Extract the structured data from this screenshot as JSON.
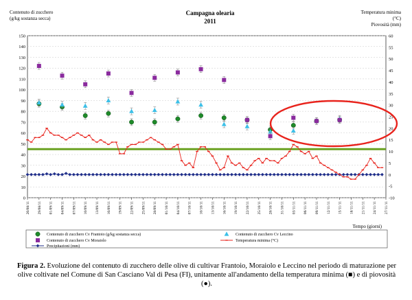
{
  "chart_data": {
    "type": "scatter",
    "title": "Campagna olearia",
    "subtitle": "2011",
    "y_left": {
      "label_line1": "Contenuto di zucchero",
      "label_line2": "(g/kg sostanza secca)",
      "min": 0,
      "max": 150,
      "step": 10
    },
    "y_right": {
      "label_line1": "Temperatura minima",
      "label_line2": "(°C)",
      "label_line3": "Piovosità (mm)",
      "min": -10,
      "max": 60,
      "step": 5
    },
    "x_label": "Tempo (giorni)",
    "x_ticks": [
      "26/08/11",
      "29/08/11",
      "01/09/11",
      "04/09/11",
      "07/09/11",
      "10/09/11",
      "13/09/11",
      "16/09/11",
      "19/09/11",
      "22/09/11",
      "25/09/11",
      "28/09/11",
      "01/10/11",
      "04/10/11",
      "07/10/11",
      "10/10/11",
      "13/10/11",
      "16/10/11",
      "19/10/11",
      "22/10/11",
      "25/10/11",
      "28/10/11",
      "31/10/11",
      "03/11/11",
      "06/11/11",
      "09/11/11",
      "12/11/11",
      "15/11/11",
      "18/11/11",
      "21/11/11",
      "24/11/11",
      "27/11/11"
    ],
    "threshold_value": 45,
    "threshold_color": "#6aa121",
    "highlight_color": "#e8231c",
    "series": [
      {
        "name": "Contenuto di zucchero Cv Frantoio (g/kg sostanza secca)",
        "marker": "circle",
        "color": "#1f8a2a",
        "axis": "left",
        "days": [
          3,
          9,
          15,
          21,
          27,
          33,
          39,
          45,
          51,
          57,
          63,
          69,
          75,
          81
        ],
        "values": [
          87,
          84,
          76,
          78,
          70,
          70,
          73,
          76,
          74,
          72,
          63,
          67,
          71,
          72
        ]
      },
      {
        "name": "Contenuto di zucchero Cv Leccino",
        "marker": "triangle",
        "color": "#3cc0e8",
        "axis": "left",
        "days": [
          3,
          9,
          15,
          21,
          27,
          33,
          39,
          45,
          51,
          57,
          63,
          69,
          75,
          81
        ],
        "values": [
          88,
          86,
          85,
          90,
          80,
          81,
          89,
          86,
          68,
          66,
          61,
          62,
          71,
          73
        ]
      },
      {
        "name": "Contenuto di zucchero Cv Moraiolo",
        "marker": "square",
        "color": "#8a2b9e",
        "axis": "left",
        "days": [
          3,
          9,
          15,
          21,
          27,
          33,
          39,
          45,
          51,
          57,
          63,
          69,
          75,
          81
        ],
        "values": [
          122,
          113,
          105,
          115,
          97,
          111,
          116,
          119,
          109,
          72,
          57,
          74,
          71,
          72
        ]
      },
      {
        "name": "Precipitazioni (mm)",
        "marker": "diamond-line",
        "color": "#1f2e8a",
        "axis": "right",
        "days": [
          0,
          1,
          2,
          3,
          4,
          5,
          6,
          7,
          8,
          9,
          10,
          11,
          12,
          13,
          14,
          15,
          16,
          17,
          18,
          19,
          20,
          21,
          22,
          23,
          24,
          25,
          26,
          27,
          28,
          29,
          30,
          31,
          32,
          33,
          34,
          35,
          36,
          37,
          38,
          39,
          40,
          41,
          42,
          43,
          44,
          45,
          46,
          47,
          48,
          49,
          50,
          51,
          52,
          53,
          54,
          55,
          56,
          57,
          58,
          59,
          60,
          61,
          62,
          63,
          64,
          65,
          66,
          67,
          68,
          69,
          70,
          71,
          72,
          73,
          74,
          75,
          76,
          77,
          78,
          79,
          80,
          81,
          82,
          83,
          84,
          85,
          86,
          87,
          88,
          89,
          90,
          91,
          92
        ],
        "values": [
          0,
          0,
          0,
          0,
          0,
          0.3,
          0,
          0.3,
          0,
          0,
          0.5,
          0,
          0,
          0,
          0,
          0,
          0,
          0,
          0,
          0,
          0,
          0,
          0,
          0,
          0,
          0,
          0,
          0,
          0,
          0,
          0,
          0,
          0,
          0,
          0,
          0,
          0,
          0,
          0,
          0,
          0,
          0,
          0,
          0,
          0,
          0,
          0,
          0,
          0,
          0,
          0,
          0,
          0,
          0,
          0,
          0,
          0,
          0,
          0,
          0,
          0,
          0,
          0,
          0,
          0,
          0,
          0,
          0,
          0,
          0,
          0,
          0,
          0,
          0,
          0,
          0,
          0,
          0,
          0,
          0,
          0,
          0,
          0,
          0,
          0,
          0,
          0,
          0,
          0,
          0,
          0,
          0,
          0
        ]
      },
      {
        "name": "Temperatura minima (°C)",
        "marker": "dash-line",
        "color": "#e8231c",
        "axis": "right",
        "days": [
          0,
          1,
          2,
          3,
          4,
          5,
          6,
          7,
          8,
          9,
          10,
          11,
          12,
          13,
          14,
          15,
          16,
          17,
          18,
          19,
          20,
          21,
          22,
          23,
          24,
          25,
          26,
          27,
          28,
          29,
          30,
          31,
          32,
          33,
          34,
          35,
          36,
          37,
          38,
          39,
          40,
          41,
          42,
          43,
          44,
          45,
          46,
          47,
          48,
          49,
          50,
          51,
          52,
          53,
          54,
          55,
          56,
          57,
          58,
          59,
          60,
          61,
          62,
          63,
          64,
          65,
          66,
          67,
          68,
          69,
          70,
          71,
          72,
          73,
          74,
          75,
          76,
          77,
          78,
          79,
          80,
          81,
          82,
          83,
          84,
          85,
          86,
          87,
          88,
          89,
          90,
          91,
          92
        ],
        "values": [
          15,
          14,
          16,
          16,
          17,
          20,
          18,
          17,
          17,
          16,
          15,
          16,
          17,
          18,
          17,
          16,
          17,
          15,
          14,
          15,
          14,
          13,
          14,
          14,
          9,
          9,
          12,
          13,
          13,
          14,
          14,
          15,
          16,
          15,
          14,
          13,
          11,
          11,
          12,
          13,
          6,
          4,
          5,
          3,
          10,
          12,
          12,
          10,
          8,
          5,
          2,
          3,
          8,
          5,
          4,
          5,
          3,
          2,
          4,
          6,
          7,
          5,
          7,
          6,
          6,
          5,
          7,
          8,
          10,
          13,
          12,
          10,
          9,
          10,
          7,
          8,
          5,
          4,
          3,
          2,
          1,
          0,
          -1,
          -1,
          -2,
          -2,
          0,
          2,
          4,
          7,
          5,
          3,
          3
        ]
      }
    ],
    "legend": [
      {
        "label": "Contenuto di zucchero Cv Frantoio (g/kg sostanza secca)",
        "marker": "circle",
        "color": "#1f8a2a"
      },
      {
        "label": "Contenuto di zucchero Cv Leccino",
        "marker": "triangle",
        "color": "#3cc0e8"
      },
      {
        "label": "Contenuto di zucchero Cv Moraiolo",
        "marker": "square",
        "color": "#8a2b9e"
      },
      {
        "label": "Temperatura minima (°C)",
        "marker": "dash-line",
        "color": "#e8231c"
      },
      {
        "label": "Precipitazioni (mm)",
        "marker": "diamond-line",
        "color": "#1f2e8a"
      }
    ]
  },
  "caption": {
    "prefix": "Figura 2.",
    "text": " Evoluzione del contenuto di zucchero delle olive di cultivar Frantoio, Moraiolo e Leccino nel periodo di maturazione per olive coltivate nel Comune di San Casciano Val di Pesa (FI), unitamente all'andamento della temperatura minima (■) e di piovosità (●)."
  }
}
